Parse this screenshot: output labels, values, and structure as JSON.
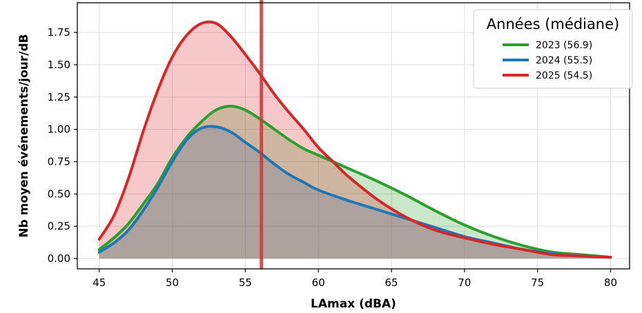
{
  "chart_data": {
    "type": "area",
    "title": "",
    "xlabel": "LAmax (dBA)",
    "ylabel": "Nb moyen événements/jour/dB",
    "xlim": [
      43.5,
      81.3
    ],
    "ylim": [
      -0.08,
      1.98
    ],
    "xticks": [
      45,
      50,
      55,
      60,
      65,
      70,
      75,
      80
    ],
    "yticks": [
      0.0,
      0.25,
      0.5,
      0.75,
      1.0,
      1.25,
      1.5,
      1.75
    ],
    "ytick_labels": [
      "0.00",
      "0.25",
      "0.50",
      "0.75",
      "1.00",
      "1.25",
      "1.50",
      "1.75"
    ],
    "grid": true,
    "legend": {
      "title": "Années (médiane)",
      "position": "top-right"
    },
    "vertical_line": {
      "x": 56.1,
      "color": "#c23b3b"
    },
    "series": [
      {
        "name": "2023 (56.9)",
        "color": "#2ca02c",
        "x": [
          45,
          46,
          47,
          48,
          49,
          50,
          51,
          52,
          53,
          54,
          55,
          56,
          57,
          58,
          59,
          60,
          62,
          64,
          66,
          68,
          70,
          72,
          74,
          76,
          78,
          80
        ],
        "values": [
          0.07,
          0.16,
          0.27,
          0.42,
          0.58,
          0.78,
          0.94,
          1.06,
          1.15,
          1.18,
          1.15,
          1.08,
          1.0,
          0.92,
          0.85,
          0.8,
          0.7,
          0.6,
          0.49,
          0.37,
          0.26,
          0.17,
          0.1,
          0.05,
          0.03,
          0.01
        ]
      },
      {
        "name": "2024 (55.5)",
        "color": "#1f77b4",
        "x": [
          45,
          46,
          47,
          48,
          49,
          50,
          51,
          52,
          53,
          54,
          55,
          56,
          57,
          58,
          59,
          60,
          62,
          64,
          66,
          68,
          70,
          72,
          74,
          76,
          78,
          80
        ],
        "values": [
          0.05,
          0.12,
          0.22,
          0.37,
          0.55,
          0.75,
          0.92,
          1.01,
          1.02,
          0.98,
          0.9,
          0.82,
          0.73,
          0.65,
          0.59,
          0.53,
          0.45,
          0.38,
          0.31,
          0.24,
          0.17,
          0.12,
          0.07,
          0.04,
          0.02,
          0.01
        ]
      },
      {
        "name": "2025 (54.5)",
        "color": "#d62728",
        "x": [
          45,
          46,
          47,
          48,
          49,
          50,
          51,
          52,
          53,
          54,
          55,
          56,
          57,
          58,
          59,
          60,
          61,
          62,
          64,
          66,
          68,
          70,
          72,
          74,
          76,
          78,
          80
        ],
        "values": [
          0.15,
          0.33,
          0.62,
          0.98,
          1.3,
          1.56,
          1.73,
          1.82,
          1.82,
          1.72,
          1.58,
          1.43,
          1.27,
          1.13,
          1.0,
          0.86,
          0.75,
          0.64,
          0.46,
          0.32,
          0.22,
          0.16,
          0.11,
          0.07,
          0.03,
          0.02,
          0.01
        ]
      }
    ]
  }
}
